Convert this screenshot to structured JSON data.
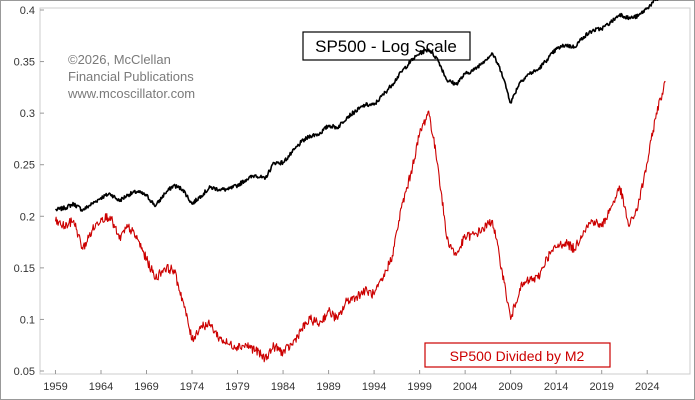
{
  "chart_data": {
    "type": "line",
    "title": "SP500 - Log Scale",
    "copyright_lines": [
      "©2026, McClellan",
      "Financial Publications",
      "www.mcoscillator.com"
    ],
    "x_tick_labels": [
      "1959",
      "1964",
      "1969",
      "1974",
      "1979",
      "1984",
      "1989",
      "1994",
      "1999",
      "2004",
      "2009",
      "2014",
      "2019",
      "2024"
    ],
    "y_tick_labels": [
      "0.4",
      "0.35",
      "0.3",
      "0.25",
      "0.2",
      "0.15",
      "0.1",
      "0.05"
    ],
    "y_ticks": [
      0.4,
      0.35,
      0.3,
      0.25,
      0.2,
      0.15,
      0.1,
      0.05
    ],
    "xlim": [
      1957.3,
      2028.7
    ],
    "ylim": [
      0.05,
      0.4
    ],
    "grid": false,
    "series": [
      {
        "name": "SP500 - Log Scale",
        "color": "#000000",
        "points": [
          [
            1959,
            0.206
          ],
          [
            1960,
            0.208
          ],
          [
            1961,
            0.212
          ],
          [
            1962,
            0.206
          ],
          [
            1963,
            0.212
          ],
          [
            1964,
            0.218
          ],
          [
            1965,
            0.222
          ],
          [
            1966,
            0.215
          ],
          [
            1967,
            0.221
          ],
          [
            1968,
            0.224
          ],
          [
            1969,
            0.22
          ],
          [
            1970,
            0.21
          ],
          [
            1971,
            0.222
          ],
          [
            1972,
            0.23
          ],
          [
            1973,
            0.226
          ],
          [
            1974,
            0.212
          ],
          [
            1975,
            0.22
          ],
          [
            1976,
            0.228
          ],
          [
            1977,
            0.226
          ],
          [
            1978,
            0.226
          ],
          [
            1979,
            0.23
          ],
          [
            1980,
            0.236
          ],
          [
            1981,
            0.24
          ],
          [
            1982,
            0.236
          ],
          [
            1983,
            0.252
          ],
          [
            1984,
            0.252
          ],
          [
            1985,
            0.262
          ],
          [
            1986,
            0.272
          ],
          [
            1987,
            0.278
          ],
          [
            1988,
            0.28
          ],
          [
            1989,
            0.288
          ],
          [
            1990,
            0.286
          ],
          [
            1991,
            0.296
          ],
          [
            1992,
            0.302
          ],
          [
            1993,
            0.308
          ],
          [
            1994,
            0.308
          ],
          [
            1995,
            0.318
          ],
          [
            1996,
            0.328
          ],
          [
            1997,
            0.34
          ],
          [
            1998,
            0.35
          ],
          [
            1999,
            0.358
          ],
          [
            2000,
            0.362
          ],
          [
            2001,
            0.352
          ],
          [
            2002,
            0.332
          ],
          [
            2003,
            0.328
          ],
          [
            2004,
            0.338
          ],
          [
            2005,
            0.342
          ],
          [
            2006,
            0.35
          ],
          [
            2007,
            0.358
          ],
          [
            2008,
            0.34
          ],
          [
            2009,
            0.31
          ],
          [
            2010,
            0.33
          ],
          [
            2011,
            0.338
          ],
          [
            2012,
            0.342
          ],
          [
            2013,
            0.352
          ],
          [
            2014,
            0.362
          ],
          [
            2015,
            0.366
          ],
          [
            2016,
            0.364
          ],
          [
            2017,
            0.374
          ],
          [
            2018,
            0.38
          ],
          [
            2019,
            0.382
          ],
          [
            2020,
            0.388
          ],
          [
            2021,
            0.396
          ],
          [
            2022,
            0.392
          ],
          [
            2023,
            0.394
          ],
          [
            2024,
            0.402
          ],
          [
            2025,
            0.41
          ],
          [
            2026,
            0.414
          ]
        ]
      },
      {
        "name": "SP500 Divided by M2",
        "color": "#cc0000",
        "points": [
          [
            1959,
            0.195
          ],
          [
            1960,
            0.19
          ],
          [
            1961,
            0.196
          ],
          [
            1962,
            0.168
          ],
          [
            1963,
            0.186
          ],
          [
            1964,
            0.198
          ],
          [
            1965,
            0.2
          ],
          [
            1966,
            0.178
          ],
          [
            1967,
            0.19
          ],
          [
            1968,
            0.178
          ],
          [
            1969,
            0.158
          ],
          [
            1970,
            0.14
          ],
          [
            1971,
            0.15
          ],
          [
            1972,
            0.148
          ],
          [
            1973,
            0.118
          ],
          [
            1974,
            0.08
          ],
          [
            1975,
            0.094
          ],
          [
            1976,
            0.095
          ],
          [
            1977,
            0.082
          ],
          [
            1978,
            0.076
          ],
          [
            1979,
            0.074
          ],
          [
            1980,
            0.075
          ],
          [
            1981,
            0.07
          ],
          [
            1982,
            0.062
          ],
          [
            1983,
            0.074
          ],
          [
            1984,
            0.068
          ],
          [
            1985,
            0.076
          ],
          [
            1986,
            0.09
          ],
          [
            1987,
            0.1
          ],
          [
            1988,
            0.096
          ],
          [
            1989,
            0.108
          ],
          [
            1990,
            0.1
          ],
          [
            1991,
            0.118
          ],
          [
            1992,
            0.122
          ],
          [
            1993,
            0.128
          ],
          [
            1994,
            0.124
          ],
          [
            1995,
            0.14
          ],
          [
            1996,
            0.162
          ],
          [
            1997,
            0.208
          ],
          [
            1998,
            0.24
          ],
          [
            1999,
            0.28
          ],
          [
            2000,
            0.302
          ],
          [
            2001,
            0.25
          ],
          [
            2002,
            0.178
          ],
          [
            2003,
            0.162
          ],
          [
            2004,
            0.18
          ],
          [
            2005,
            0.182
          ],
          [
            2006,
            0.188
          ],
          [
            2007,
            0.196
          ],
          [
            2008,
            0.15
          ],
          [
            2009,
            0.1
          ],
          [
            2010,
            0.13
          ],
          [
            2011,
            0.138
          ],
          [
            2012,
            0.14
          ],
          [
            2013,
            0.16
          ],
          [
            2014,
            0.17
          ],
          [
            2015,
            0.175
          ],
          [
            2016,
            0.168
          ],
          [
            2017,
            0.186
          ],
          [
            2018,
            0.196
          ],
          [
            2019,
            0.19
          ],
          [
            2020,
            0.208
          ],
          [
            2021,
            0.228
          ],
          [
            2022,
            0.19
          ],
          [
            2023,
            0.21
          ],
          [
            2024,
            0.252
          ],
          [
            2025,
            0.3
          ],
          [
            2026,
            0.33
          ]
        ]
      }
    ]
  }
}
